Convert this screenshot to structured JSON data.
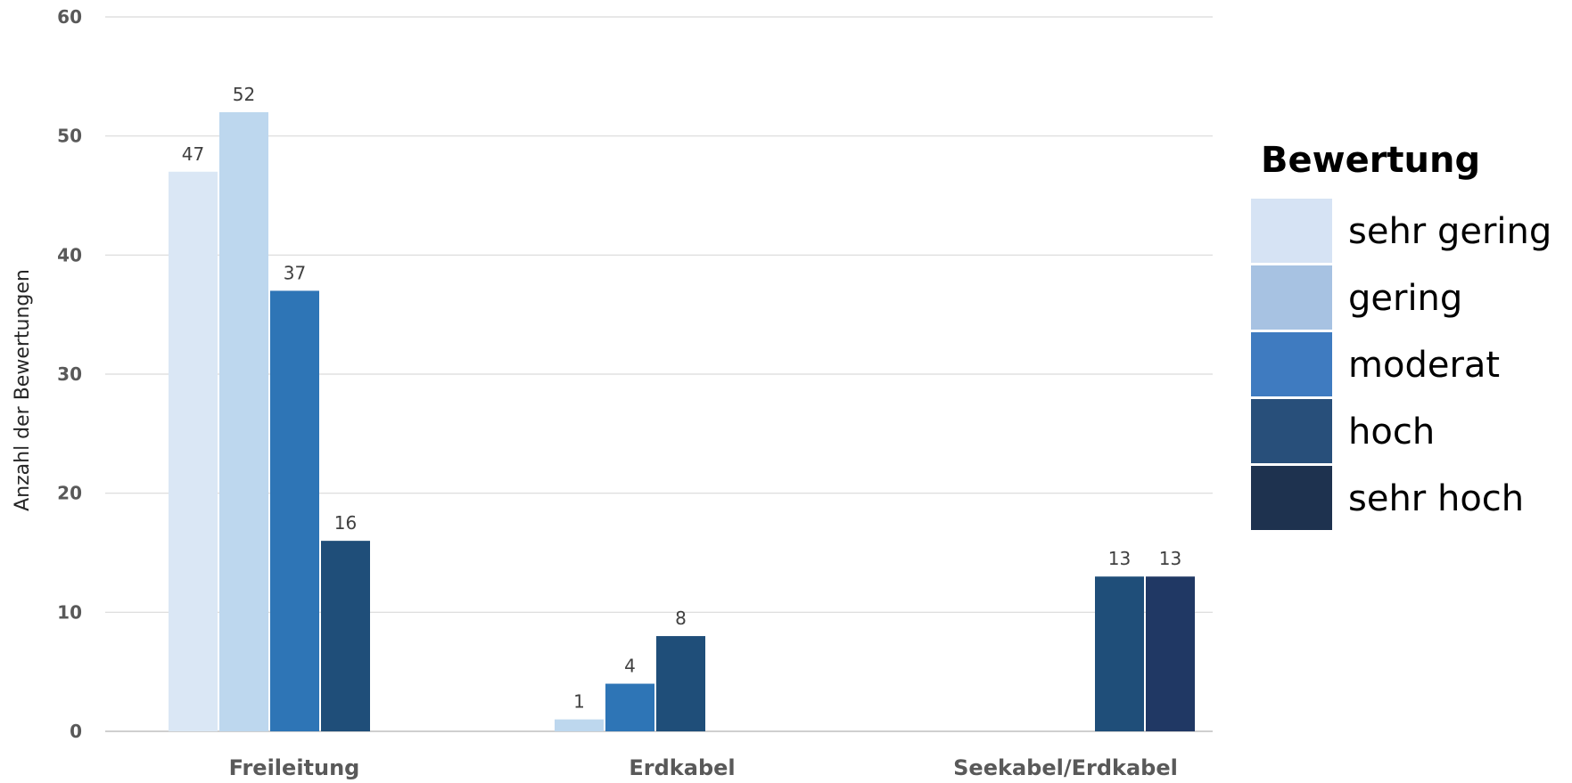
{
  "chart_data": {
    "type": "bar",
    "categories": [
      "Freileitung",
      "Erdkabel",
      "Seekabel/Erdkabel"
    ],
    "ylabel": "Anzahl der Bewertungen",
    "ylim": [
      0,
      60
    ],
    "yticks": [
      0,
      10,
      20,
      30,
      40,
      50,
      60
    ],
    "grid": true,
    "legend_title": "Bewertung",
    "legend_position": "right",
    "series": [
      {
        "name": "sehr gering",
        "legend_color": "#D6E3F4",
        "values": [
          47,
          null,
          null
        ],
        "colors": [
          "#DAE7F5",
          null,
          null
        ]
      },
      {
        "name": "gering",
        "legend_color": "#A7C2E2",
        "values": [
          52,
          1,
          null
        ],
        "colors": [
          "#BDD7EE",
          "#BDD7EE",
          null
        ]
      },
      {
        "name": "moderat",
        "legend_color": "#3F7BC0",
        "values": [
          37,
          4,
          null
        ],
        "colors": [
          "#2E75B6",
          "#2E75B6",
          null
        ]
      },
      {
        "name": "hoch",
        "legend_color": "#284F7A",
        "values": [
          16,
          8,
          13
        ],
        "colors": [
          "#1F4E79",
          "#1F4E79",
          "#1F4E79"
        ]
      },
      {
        "name": "sehr hoch",
        "legend_color": "#1E324F",
        "values": [
          null,
          null,
          13
        ],
        "colors": [
          null,
          null,
          "#203864"
        ]
      }
    ]
  }
}
